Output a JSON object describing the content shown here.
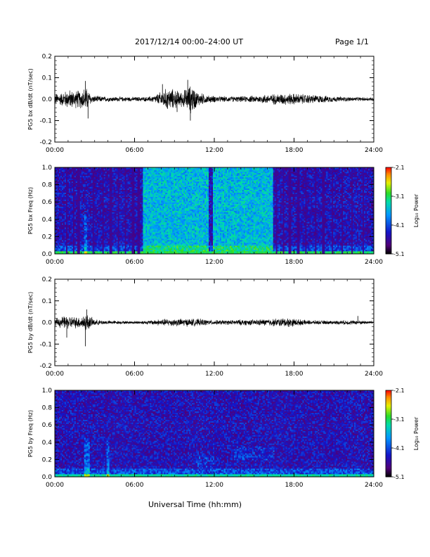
{
  "header": {
    "title": "2017/12/14  00:00–24:00 UT",
    "page": "Page 1/1"
  },
  "x_axis_title": "Universal Time (hh:mm)",
  "chart_data": [
    {
      "type": "line",
      "ylabel": "PG5 bx dB/dt (nT/sec)",
      "ylim": [
        -0.2,
        0.2
      ],
      "yticks": [
        "0.2",
        "0.1",
        "0.0",
        "-0.1",
        "-0.2"
      ],
      "xticks": [
        "00:00",
        "06:00",
        "12:00",
        "18:00",
        "24:00"
      ],
      "x_range_hours": [
        0,
        24
      ],
      "series_color": "#000000",
      "envelope": {
        "x": [
          0,
          0.5,
          1.0,
          1.5,
          2.0,
          2.3,
          2.5,
          2.8,
          3.5,
          5.0,
          6.0,
          7.0,
          7.5,
          8.0,
          8.5,
          9.0,
          9.5,
          10.0,
          10.3,
          10.7,
          11.5,
          12.5,
          14.0,
          15.0,
          16.0,
          17.0,
          18.0,
          19.0,
          20.0,
          21.0,
          22.0,
          23.0,
          24.0
        ],
        "amp": [
          0.03,
          0.035,
          0.05,
          0.045,
          0.05,
          0.065,
          0.05,
          0.02,
          0.015,
          0.012,
          0.012,
          0.012,
          0.02,
          0.04,
          0.06,
          0.05,
          0.04,
          0.06,
          0.08,
          0.04,
          0.02,
          0.015,
          0.015,
          0.018,
          0.025,
          0.03,
          0.03,
          0.025,
          0.02,
          0.015,
          0.012,
          0.01,
          0.01
        ]
      },
      "spikes": [
        {
          "x": 2.3,
          "y": 0.085
        },
        {
          "x": 2.5,
          "y": -0.09
        },
        {
          "x": 8.1,
          "y": 0.07
        },
        {
          "x": 10.0,
          "y": 0.09
        },
        {
          "x": 10.2,
          "y": -0.1
        },
        {
          "x": 9.2,
          "y": -0.06
        }
      ]
    },
    {
      "type": "heatmap",
      "ylabel": "PG5 bx Freq (Hz)",
      "ylim": [
        0.0,
        1.0
      ],
      "yticks": [
        "1.0",
        "0.8",
        "0.6",
        "0.4",
        "0.2",
        "0.0"
      ],
      "xticks": [
        "00:00",
        "06:00",
        "12:00",
        "18:00",
        "24:00"
      ],
      "x_range_hours": [
        0,
        24
      ],
      "colorbar": {
        "label": "Log₁₀ Power",
        "ticks": [
          "-2.1",
          "-3.1",
          "-4.1",
          "-5.1"
        ],
        "range": [
          -5.1,
          -2.1
        ]
      },
      "high_power_blocks_hours": [
        [
          6.6,
          11.6
        ],
        [
          11.9,
          16.4
        ]
      ],
      "dropout_stripe_hours": [
        0.9,
        1.4,
        1.8,
        2.9,
        3.6,
        4.2,
        4.8,
        5.3,
        5.9,
        6.3,
        16.7,
        17.2,
        17.7,
        18.3,
        18.9,
        19.6,
        20.2,
        20.9,
        21.6,
        22.4,
        23.2
      ],
      "bright_column_hours": [
        2.3
      ],
      "low_freq_band_level": -3.1
    },
    {
      "type": "line",
      "ylabel": "PG5 by dB/dt (nT/sec)",
      "ylim": [
        -0.2,
        0.2
      ],
      "yticks": [
        "0.2",
        "0.1",
        "0.0",
        "-0.1",
        "-0.2"
      ],
      "xticks": [
        "00:00",
        "06:00",
        "12:00",
        "18:00",
        "24:00"
      ],
      "x_range_hours": [
        0,
        24
      ],
      "series_color": "#000000",
      "envelope": {
        "x": [
          0,
          0.5,
          1.0,
          1.5,
          2.0,
          2.3,
          2.5,
          3.0,
          4.0,
          5.0,
          6.0,
          7.0,
          8.0,
          9.0,
          10.0,
          11.0,
          12.0,
          13.0,
          14.0,
          15.0,
          16.0,
          17.0,
          17.5,
          18.0,
          18.5,
          19.0,
          20.0,
          21.0,
          22.0,
          23.0,
          24.0
        ],
        "amp": [
          0.02,
          0.03,
          0.035,
          0.03,
          0.03,
          0.05,
          0.04,
          0.015,
          0.01,
          0.008,
          0.008,
          0.01,
          0.018,
          0.02,
          0.02,
          0.018,
          0.012,
          0.012,
          0.015,
          0.015,
          0.018,
          0.022,
          0.025,
          0.02,
          0.015,
          0.012,
          0.01,
          0.01,
          0.012,
          0.01,
          0.008
        ]
      },
      "spikes": [
        {
          "x": 2.4,
          "y": 0.06
        },
        {
          "x": 2.3,
          "y": -0.11
        },
        {
          "x": 0.9,
          "y": -0.07
        },
        {
          "x": 22.8,
          "y": 0.03
        }
      ]
    },
    {
      "type": "heatmap",
      "ylabel": "PG5 by Freq (Hz)",
      "ylim": [
        0.0,
        1.0
      ],
      "yticks": [
        "1.0",
        "0.8",
        "0.6",
        "0.4",
        "0.2",
        "0.0"
      ],
      "xticks": [
        "00:00",
        "06:00",
        "12:00",
        "18:00",
        "24:00"
      ],
      "x_range_hours": [
        0,
        24
      ],
      "colorbar": {
        "label": "Log₁₀ Power",
        "ticks": [
          "-2.1",
          "-3.1",
          "-4.1",
          "-5.1"
        ],
        "range": [
          -5.1,
          -2.1
        ]
      },
      "high_power_blocks_hours": [],
      "dropout_stripe_hours": [],
      "bright_column_hours": [
        2.3,
        2.5,
        4.0
      ],
      "low_freq_band_level": -3.3,
      "patches": [
        {
          "x": [
            13.5,
            16.5
          ],
          "y": [
            0.2,
            0.35
          ]
        },
        {
          "x": [
            10.5,
            12.0
          ],
          "y": [
            0.1,
            0.25
          ]
        }
      ]
    }
  ]
}
